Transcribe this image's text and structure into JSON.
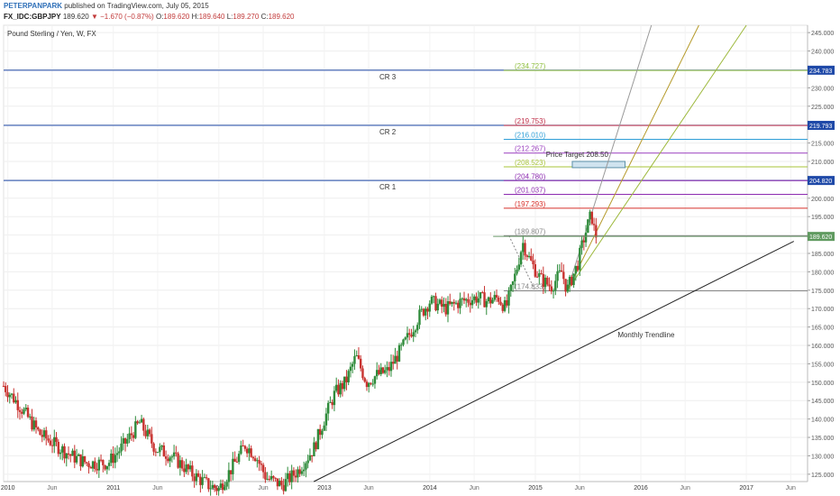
{
  "header": {
    "author": "PETERPANPARK",
    "published": "published on TradingView.com, July 05, 2015",
    "symbol": "FX_IDC:GBPJPY",
    "last": "189.620",
    "arrow": "▼",
    "change": "−1.670 (−0.87%)",
    "o_label": "O:",
    "o": "189.620",
    "h_label": "H:",
    "h": "189.640",
    "l_label": "L:",
    "l": "189.270",
    "c_label": "C:",
    "c": "189.620"
  },
  "chart_data": {
    "type": "candlestick",
    "title": "Pound Sterling / Yen, W, FX",
    "ylim": [
      123,
      247
    ],
    "y_ticks": [
      "125.000",
      "130.000",
      "135.000",
      "140.000",
      "145.000",
      "150.000",
      "155.000",
      "160.000",
      "165.000",
      "170.000",
      "175.000",
      "180.000",
      "185.000",
      "190.000",
      "195.000",
      "200.000",
      "205.000",
      "210.000",
      "215.000",
      "220.000",
      "225.000",
      "230.000",
      "235.000",
      "240.000",
      "245.000"
    ],
    "x_ticks": [
      {
        "label": "2010",
        "t": 2010.0
      },
      {
        "label": "Jun",
        "t": 2010.42
      },
      {
        "label": "2011",
        "t": 2011.0
      },
      {
        "label": "Jun",
        "t": 2011.42
      },
      {
        "label": "2012",
        "t": 2012.0
      },
      {
        "label": "Jun",
        "t": 2012.42
      },
      {
        "label": "2013",
        "t": 2013.0
      },
      {
        "label": "Jun",
        "t": 2013.42
      },
      {
        "label": "2014",
        "t": 2014.0
      },
      {
        "label": "Jun",
        "t": 2014.42
      },
      {
        "label": "2015",
        "t": 2015.0
      },
      {
        "label": "Jun",
        "t": 2015.42
      },
      {
        "label": "2016",
        "t": 2016.0
      },
      {
        "label": "Jun",
        "t": 2016.42
      },
      {
        "label": "2017",
        "t": 2017.0
      },
      {
        "label": "Jun",
        "t": 2017.42
      }
    ],
    "price_path": [
      [
        2009.96,
        149
      ],
      [
        2010.1,
        144
      ],
      [
        2010.3,
        136
      ],
      [
        2010.45,
        133
      ],
      [
        2010.6,
        130
      ],
      [
        2010.75,
        128
      ],
      [
        2010.95,
        128
      ],
      [
        2011.1,
        133
      ],
      [
        2011.25,
        139
      ],
      [
        2011.4,
        132
      ],
      [
        2011.55,
        130
      ],
      [
        2011.75,
        125
      ],
      [
        2011.9,
        122
      ],
      [
        2012.0,
        121
      ],
      [
        2012.15,
        128
      ],
      [
        2012.25,
        133
      ],
      [
        2012.35,
        130
      ],
      [
        2012.45,
        124
      ],
      [
        2012.6,
        122
      ],
      [
        2012.75,
        126
      ],
      [
        2012.9,
        132
      ],
      [
        2013.0,
        140
      ],
      [
        2013.1,
        147
      ],
      [
        2013.2,
        150
      ],
      [
        2013.3,
        157
      ],
      [
        2013.4,
        150
      ],
      [
        2013.5,
        152
      ],
      [
        2013.6,
        153
      ],
      [
        2013.75,
        160
      ],
      [
        2013.9,
        168
      ],
      [
        2014.0,
        172
      ],
      [
        2014.15,
        170
      ],
      [
        2014.3,
        172
      ],
      [
        2014.45,
        173
      ],
      [
        2014.55,
        172
      ],
      [
        2014.65,
        173
      ],
      [
        2014.72,
        170
      ],
      [
        2014.8,
        178
      ],
      [
        2014.88,
        188
      ],
      [
        2014.95,
        183
      ],
      [
        2015.05,
        178
      ],
      [
        2015.15,
        176
      ],
      [
        2015.25,
        180
      ],
      [
        2015.3,
        175
      ],
      [
        2015.4,
        182
      ],
      [
        2015.45,
        188
      ],
      [
        2015.5,
        193
      ],
      [
        2015.53,
        195.7
      ],
      [
        2015.56,
        191
      ],
      [
        2015.58,
        189.6
      ]
    ],
    "last_price": "189.620",
    "horizontal_lines": [
      {
        "value": 234.783,
        "label": "CR 3",
        "badge": "234.783",
        "color": "#1f49a8",
        "label_t": 2013.6
      },
      {
        "value": 219.793,
        "label": "CR 2",
        "badge": "219.793",
        "color": "#1f49a8",
        "label_t": 2013.6
      },
      {
        "value": 204.82,
        "label": "CR 1",
        "badge": "204.820",
        "color": "#1f49a8",
        "label_t": 2013.6
      }
    ],
    "fib_levels": [
      {
        "label": "(234.727)",
        "value": 234.727,
        "color": "#8fbf3f"
      },
      {
        "label": "(219.753)",
        "value": 219.753,
        "color": "#c0304a"
      },
      {
        "label": "(216.010)",
        "value": 216.01,
        "color": "#2f9fd8"
      },
      {
        "label": "(212.267)",
        "value": 212.267,
        "color": "#9a3fbf"
      },
      {
        "label": "(208.523)",
        "value": 208.523,
        "color": "#a8c43a"
      },
      {
        "label": "(204.780)",
        "value": 204.78,
        "color": "#8d2bb0"
      },
      {
        "label": "(201.037)",
        "value": 201.037,
        "color": "#8d2bb0"
      },
      {
        "label": "(197.293)",
        "value": 197.293,
        "color": "#d8302a"
      },
      {
        "label": "(189.807)",
        "value": 189.807,
        "color": "#888888"
      },
      {
        "label": "(174.833)",
        "value": 174.833,
        "color": "#888888"
      }
    ],
    "fib_label_t": 2014.95,
    "fib_line_start_t": 2014.7,
    "price_target": {
      "label": "Price Target 208.50",
      "t0": 2015.35,
      "t1": 2015.85,
      "low": 208.3,
      "high": 210.0,
      "label_t": 2015.1,
      "label_value": 211.2
    },
    "fan_origin": {
      "t": 2015.3,
      "value": 174.8
    },
    "fan_lines": [
      {
        "color": "#999999",
        "t": 2016.1,
        "value": 247
      },
      {
        "color": "#b59a2a",
        "t": 2016.55,
        "value": 247
      },
      {
        "color": "#9cb83a",
        "t": 2017.0,
        "value": 247
      }
    ],
    "trendline": {
      "label": "Monthly Trendline",
      "t0": 2012.9,
      "v0": 123,
      "t1": 2017.45,
      "v1": 188.3,
      "label_t": 2016.05,
      "label_value": 162.2
    },
    "extra_segments": [
      {
        "t0": 2014.75,
        "v0": 189.8,
        "t1": 2015.0,
        "v1": 174.8,
        "color": "#888888",
        "dash": "2,2"
      }
    ]
  }
}
